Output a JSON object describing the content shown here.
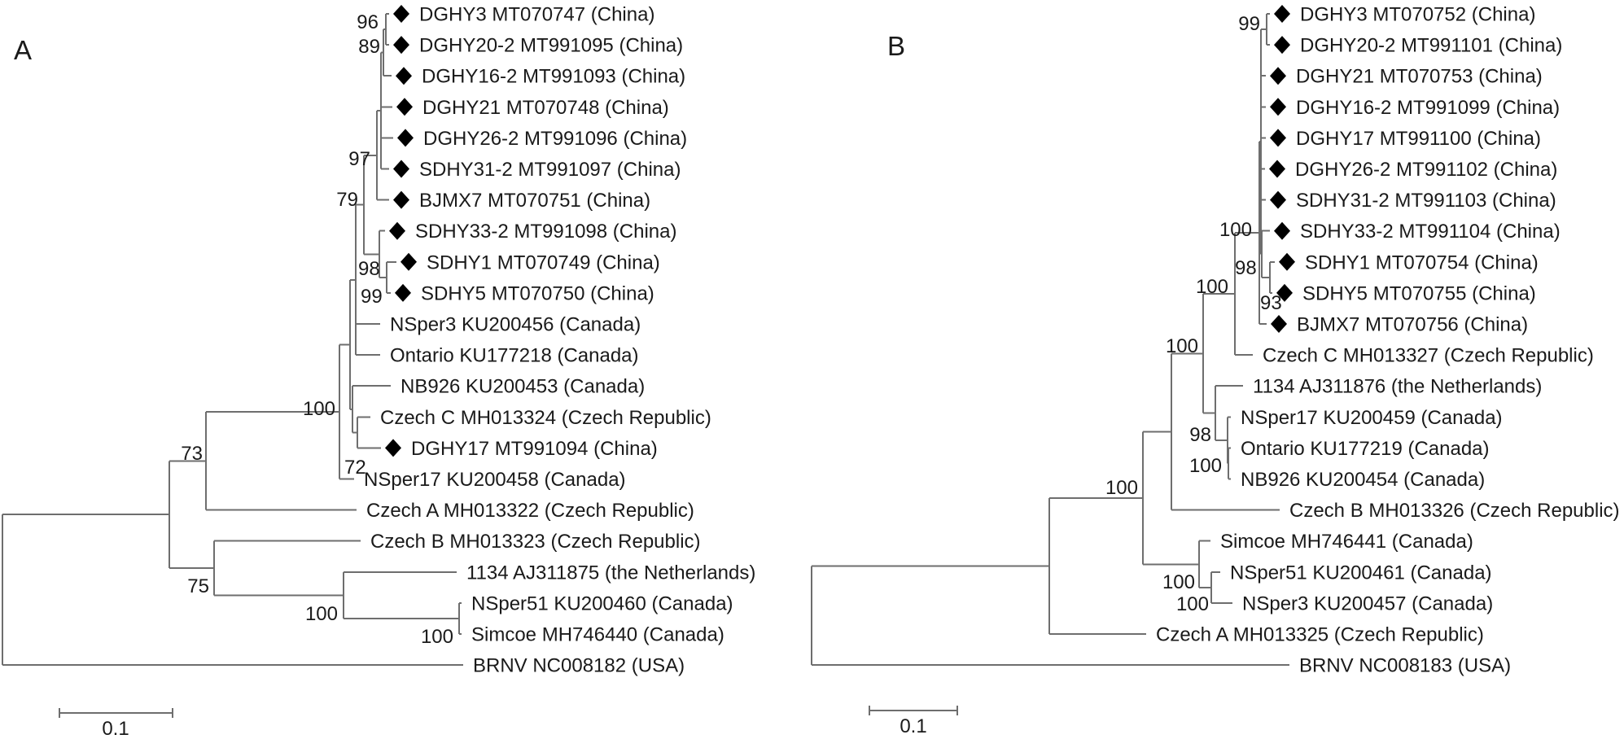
{
  "figure": {
    "colors": {
      "branch": "#6e6e6e",
      "marker": "#000000",
      "text": "#1a1a1a"
    },
    "panels": [
      {
        "letter": "A",
        "scale_bar_label": "0.1",
        "leaves": [
          {
            "label": "DGHY3 MT070747 (China)",
            "marker": "diamond"
          },
          {
            "label": "DGHY20-2 MT991095 (China)",
            "marker": "diamond"
          },
          {
            "label": "DGHY16-2 MT991093 (China)",
            "marker": "diamond"
          },
          {
            "label": "DGHY21 MT070748 (China)",
            "marker": "diamond"
          },
          {
            "label": "DGHY26-2 MT991096 (China)",
            "marker": "diamond"
          },
          {
            "label": "SDHY31-2 MT991097 (China)",
            "marker": "diamond"
          },
          {
            "label": "BJMX7 MT070751 (China)",
            "marker": "diamond"
          },
          {
            "label": "SDHY33-2 MT991098 (China)",
            "marker": "diamond"
          },
          {
            "label": "SDHY1 MT070749 (China)",
            "marker": "diamond"
          },
          {
            "label": "SDHY5 MT070750 (China)",
            "marker": "diamond"
          },
          {
            "label": "NSper3 KU200456 (Canada)",
            "marker": "none"
          },
          {
            "label": "Ontario KU177218 (Canada)",
            "marker": "none"
          },
          {
            "label": "NB926 KU200453 (Canada)",
            "marker": "none"
          },
          {
            "label": "Czech C MH013324 (Czech Republic)",
            "marker": "none"
          },
          {
            "label": "DGHY17 MT991094 (China)",
            "marker": "diamond"
          },
          {
            "label": "NSper17 KU200458 (Canada)",
            "marker": "none"
          },
          {
            "label": "Czech A MH013322 (Czech Republic)",
            "marker": "none"
          },
          {
            "label": "Czech B MH013323 (Czech Republic)",
            "marker": "none"
          },
          {
            "label": "1134 AJ311875 (the Netherlands)",
            "marker": "none"
          },
          {
            "label": "NSper51 KU200460 (Canada)",
            "marker": "none"
          },
          {
            "label": "Simcoe MH746440 (Canada)",
            "marker": "none"
          },
          {
            "label": "BRNV NC008182 (USA)",
            "marker": "none"
          }
        ],
        "bootstrap": [
          "96",
          "89",
          "97",
          "79",
          "98",
          "99",
          "100",
          "72",
          "73",
          "75",
          "100",
          "100"
        ]
      },
      {
        "letter": "B",
        "scale_bar_label": "0.1",
        "leaves": [
          {
            "label": "DGHY3 MT070752 (China)",
            "marker": "diamond"
          },
          {
            "label": "DGHY20-2 MT991101 (China)",
            "marker": "diamond"
          },
          {
            "label": "DGHY21 MT070753 (China)",
            "marker": "diamond"
          },
          {
            "label": "DGHY16-2 MT991099 (China)",
            "marker": "diamond"
          },
          {
            "label": "DGHY17 MT991100 (China)",
            "marker": "diamond"
          },
          {
            "label": "DGHY26-2 MT991102 (China)",
            "marker": "diamond"
          },
          {
            "label": "SDHY31-2 MT991103 (China)",
            "marker": "diamond"
          },
          {
            "label": "SDHY33-2 MT991104 (China)",
            "marker": "diamond"
          },
          {
            "label": "SDHY1 MT070754 (China)",
            "marker": "diamond"
          },
          {
            "label": "SDHY5 MT070755 (China)",
            "marker": "diamond"
          },
          {
            "label": "BJMX7 MT070756 (China)",
            "marker": "diamond"
          },
          {
            "label": "Czech C MH013327 (Czech Republic)",
            "marker": "none"
          },
          {
            "label": "1134 AJ311876 (the Netherlands)",
            "marker": "none"
          },
          {
            "label": "NSper17 KU200459 (Canada)",
            "marker": "none"
          },
          {
            "label": "Ontario KU177219 (Canada)",
            "marker": "none"
          },
          {
            "label": "NB926 KU200454 (Canada)",
            "marker": "none"
          },
          {
            "label": "Czech B MH013326 (Czech Republic)",
            "marker": "none"
          },
          {
            "label": "Simcoe MH746441 (Canada)",
            "marker": "none"
          },
          {
            "label": "NSper51 KU200461 (Canada)",
            "marker": "none"
          },
          {
            "label": "NSper3 KU200457 (Canada)",
            "marker": "none"
          },
          {
            "label": "Czech A MH013325 (Czech Republic)",
            "marker": "none"
          },
          {
            "label": "BRNV NC008183 (USA)",
            "marker": "none"
          }
        ],
        "bootstrap": [
          "99",
          "100",
          "98",
          "93",
          "100",
          "100",
          "98",
          "100",
          "100",
          "100",
          "100"
        ]
      }
    ]
  }
}
